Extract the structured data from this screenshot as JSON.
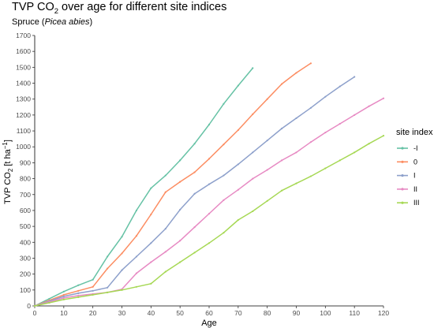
{
  "chart_data": {
    "type": "line",
    "title_prefix": "TVP CO",
    "title_sub": "2",
    "title_suffix": " over age for different site indices",
    "subtitle_prefix": "Spruce (",
    "subtitle_italic": "Picea abies",
    "subtitle_suffix": ")",
    "xlabel": "Age",
    "ylabel_main": "TVP CO",
    "ylabel_sub": "2",
    "ylabel_unit_pre": " [t ha",
    "ylabel_unit_sup": "−1",
    "ylabel_unit_post": "]",
    "xlim": [
      0,
      120
    ],
    "ylim": [
      0,
      1700
    ],
    "x_ticks": [
      0,
      10,
      20,
      30,
      40,
      50,
      60,
      70,
      80,
      90,
      100,
      110,
      120
    ],
    "y_ticks": [
      0,
      100,
      200,
      300,
      400,
      500,
      600,
      700,
      800,
      900,
      1000,
      1100,
      1200,
      1300,
      1400,
      1500,
      1600,
      1700
    ],
    "grid": false,
    "legend_title": "site index",
    "legend_position": "right",
    "series": [
      {
        "name": "-I",
        "color": "#66c2a5",
        "x": [
          0,
          5,
          10,
          15,
          20,
          25,
          30,
          35,
          40,
          45,
          50,
          55,
          60,
          65,
          70,
          75
        ],
        "y": [
          0,
          45,
          90,
          130,
          165,
          310,
          435,
          600,
          740,
          820,
          915,
          1020,
          1140,
          1270,
          1385,
          1495
        ]
      },
      {
        "name": "0",
        "color": "#fc8d62",
        "x": [
          0,
          5,
          10,
          15,
          20,
          25,
          30,
          35,
          40,
          45,
          50,
          55,
          60,
          65,
          70,
          75,
          80,
          85,
          90,
          95
        ],
        "y": [
          0,
          35,
          70,
          95,
          120,
          235,
          330,
          440,
          575,
          715,
          780,
          840,
          925,
          1015,
          1105,
          1205,
          1300,
          1395,
          1465,
          1525
        ]
      },
      {
        "name": "I",
        "color": "#8da0cb",
        "x": [
          0,
          5,
          10,
          15,
          20,
          25,
          30,
          35,
          40,
          45,
          50,
          55,
          60,
          65,
          70,
          75,
          80,
          85,
          90,
          95,
          100,
          105,
          110
        ],
        "y": [
          0,
          30,
          60,
          80,
          95,
          115,
          225,
          310,
          395,
          485,
          605,
          705,
          765,
          820,
          890,
          965,
          1040,
          1115,
          1180,
          1245,
          1315,
          1380,
          1440
        ]
      },
      {
        "name": "II",
        "color": "#e78ac3",
        "x": [
          0,
          5,
          10,
          15,
          20,
          25,
          30,
          35,
          40,
          45,
          50,
          55,
          60,
          65,
          70,
          75,
          80,
          85,
          90,
          95,
          100,
          105,
          110,
          115,
          120
        ],
        "y": [
          0,
          25,
          50,
          65,
          75,
          85,
          105,
          205,
          275,
          340,
          410,
          495,
          580,
          665,
          730,
          800,
          855,
          915,
          965,
          1030,
          1090,
          1145,
          1200,
          1255,
          1305
        ]
      },
      {
        "name": "III",
        "color": "#a6d854",
        "x": [
          0,
          5,
          10,
          15,
          20,
          25,
          30,
          35,
          40,
          45,
          50,
          55,
          60,
          65,
          70,
          75,
          80,
          85,
          90,
          95,
          100,
          105,
          110,
          115,
          120
        ],
        "y": [
          0,
          20,
          40,
          55,
          70,
          85,
          100,
          120,
          140,
          215,
          275,
          335,
          395,
          460,
          540,
          595,
          660,
          725,
          770,
          815,
          865,
          915,
          965,
          1020,
          1070
        ]
      }
    ]
  }
}
